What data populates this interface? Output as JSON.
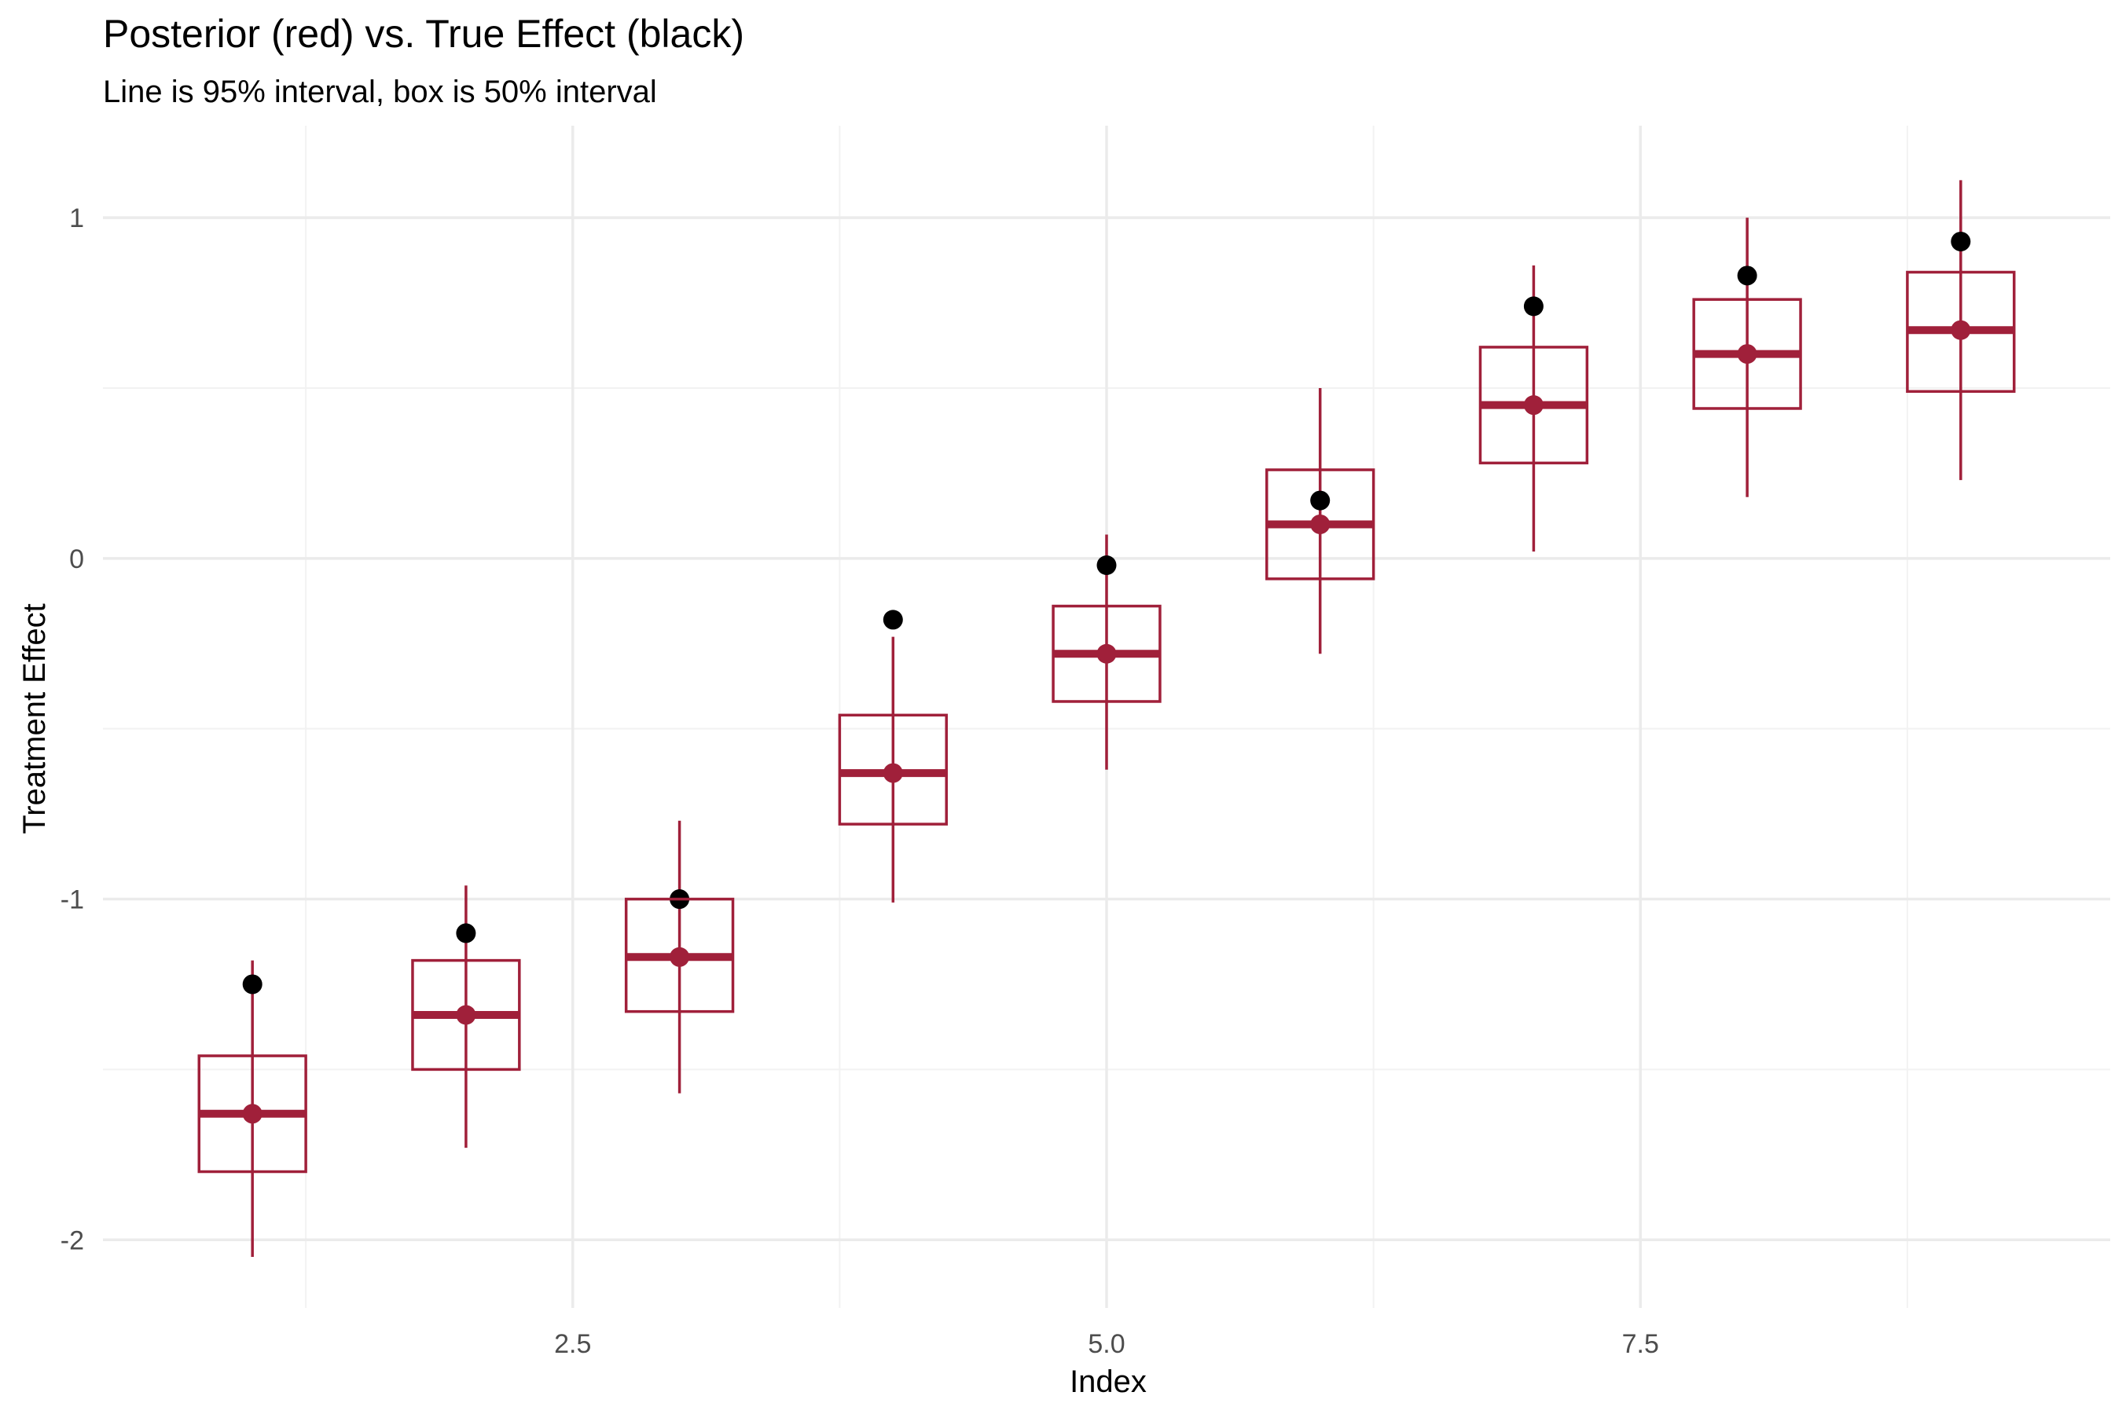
{
  "chart_data": {
    "type": "boxplot-interval",
    "title": "Posterior (red) vs. True Effect (black)",
    "subtitle": "Line is 95% interval, box is 50% interval",
    "xlabel": "Index",
    "ylabel": "Treatment Effect",
    "xlim": [
      0.3,
      9.7
    ],
    "ylim": [
      -2.2,
      1.27
    ],
    "x_ticks": [
      2.5,
      5.0,
      7.5
    ],
    "x_tick_labels": [
      "2.5",
      "5.0",
      "7.5"
    ],
    "x_minor_ticks": [
      1.25,
      3.75,
      6.25,
      8.75
    ],
    "y_ticks": [
      -2,
      -1,
      0,
      1
    ],
    "y_tick_labels": [
      "-2",
      "-1",
      "0",
      "1"
    ],
    "y_minor_ticks": [
      -1.5,
      -0.5,
      0.5
    ],
    "grid": true,
    "legend": "none",
    "colors": {
      "posterior": "#a0203a",
      "true_effect": "#000000",
      "grid_major": "#ebebeb",
      "grid_minor": "#f2f2f2",
      "tick_label": "#4d4d4d"
    },
    "series": [
      {
        "name": "Posterior",
        "points": [
          {
            "x": 1,
            "q025": -2.05,
            "q25": -1.8,
            "median": -1.63,
            "q75": -1.46,
            "q975": -1.18
          },
          {
            "x": 2,
            "q025": -1.73,
            "q25": -1.5,
            "median": -1.34,
            "q75": -1.18,
            "q975": -0.96
          },
          {
            "x": 3,
            "q025": -1.57,
            "q25": -1.33,
            "median": -1.17,
            "q75": -1.0,
            "q975": -0.77
          },
          {
            "x": 4,
            "q025": -1.01,
            "q25": -0.78,
            "median": -0.63,
            "q75": -0.46,
            "q975": -0.23
          },
          {
            "x": 5,
            "q025": -0.62,
            "q25": -0.42,
            "median": -0.28,
            "q75": -0.14,
            "q975": 0.07
          },
          {
            "x": 6,
            "q025": -0.28,
            "q25": -0.06,
            "median": 0.1,
            "q75": 0.26,
            "q975": 0.5
          },
          {
            "x": 7,
            "q025": 0.02,
            "q25": 0.28,
            "median": 0.45,
            "q75": 0.62,
            "q975": 0.86
          },
          {
            "x": 8,
            "q025": 0.18,
            "q25": 0.44,
            "median": 0.6,
            "q75": 0.76,
            "q975": 1.0
          },
          {
            "x": 9,
            "q025": 0.23,
            "q25": 0.49,
            "median": 0.67,
            "q75": 0.84,
            "q975": 1.11
          }
        ]
      },
      {
        "name": "True Effect",
        "values": [
          {
            "x": 1,
            "y": -1.25
          },
          {
            "x": 2,
            "y": -1.1
          },
          {
            "x": 3,
            "y": -1.0
          },
          {
            "x": 4,
            "y": -0.18
          },
          {
            "x": 5,
            "y": -0.02
          },
          {
            "x": 6,
            "y": 0.17
          },
          {
            "x": 7,
            "y": 0.74
          },
          {
            "x": 8,
            "y": 0.83
          },
          {
            "x": 9,
            "y": 0.93
          }
        ]
      }
    ]
  }
}
